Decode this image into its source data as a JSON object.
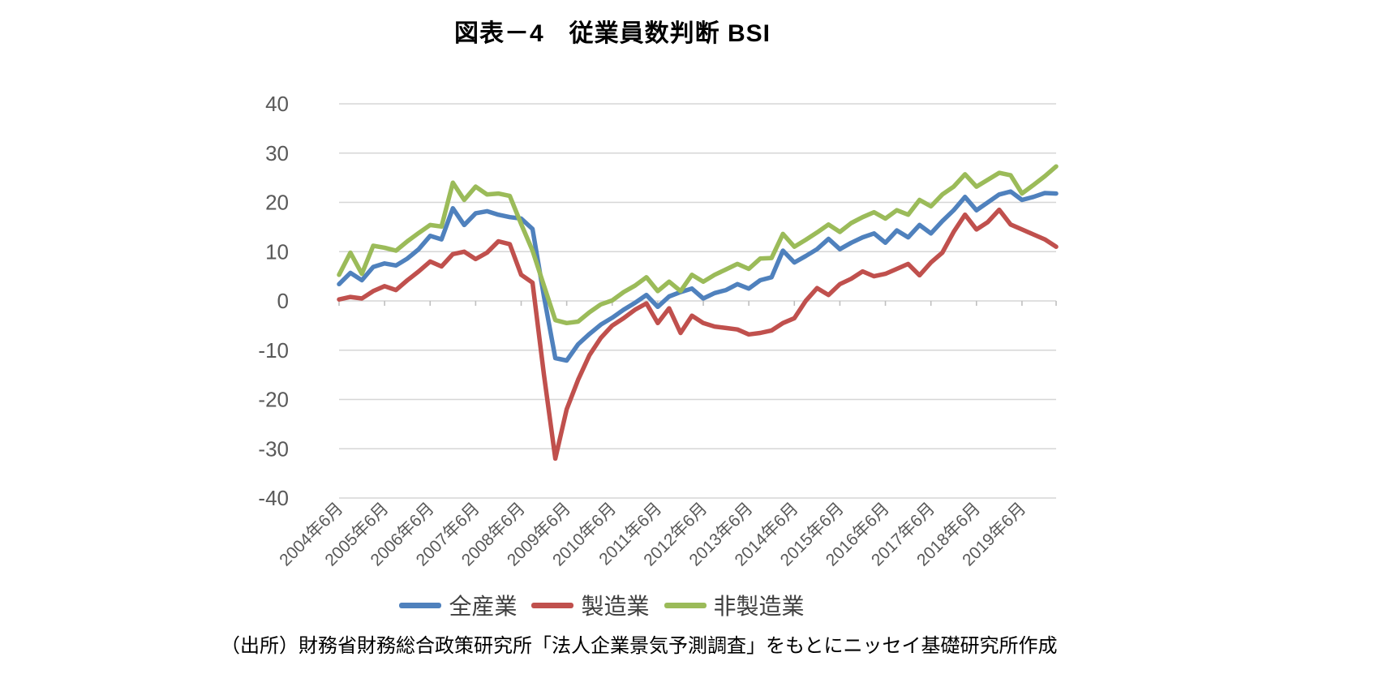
{
  "title": "図表－4　従業員数判断 BSI",
  "source": "（出所）財務省財務総合政策研究所「法人企業景気予測調査」をもとにニッセイ基礎研究所作成",
  "legend": {
    "items": [
      {
        "label": "全産業",
        "color": "#4f81bd"
      },
      {
        "label": "製造業",
        "color": "#c0504d"
      },
      {
        "label": "非製造業",
        "color": "#9bbb59"
      }
    ]
  },
  "colors": {
    "grid": "#d6d6d6",
    "tick": "#bfbfbf",
    "axis_text": "#595959",
    "all_industries": "#4f81bd",
    "manufacturing": "#c0504d",
    "non_manufacturing": "#9bbb59"
  },
  "chart_data": {
    "type": "line",
    "title": "図表－4　従業員数判断 BSI",
    "xlabel": "",
    "ylabel": "",
    "ylim": [
      -40,
      40
    ],
    "ytick_step": 10,
    "yticks": [
      40,
      30,
      20,
      10,
      0,
      -10,
      -20,
      -30,
      -40
    ],
    "grid": true,
    "legend_position": "bottom",
    "x_tick_every": 4,
    "categories": [
      "2004年6月",
      "2004年9月",
      "2004年12月",
      "2005年3月",
      "2005年6月",
      "2005年9月",
      "2005年12月",
      "2006年3月",
      "2006年6月",
      "2006年9月",
      "2006年12月",
      "2007年3月",
      "2007年6月",
      "2007年9月",
      "2007年12月",
      "2008年3月",
      "2008年6月",
      "2008年9月",
      "2008年12月",
      "2009年3月",
      "2009年6月",
      "2009年9月",
      "2009年12月",
      "2010年3月",
      "2010年6月",
      "2010年9月",
      "2010年12月",
      "2011年3月",
      "2011年6月",
      "2011年9月",
      "2011年12月",
      "2012年3月",
      "2012年6月",
      "2012年9月",
      "2012年12月",
      "2013年3月",
      "2013年6月",
      "2013年9月",
      "2013年12月",
      "2014年3月",
      "2014年6月",
      "2014年9月",
      "2014年12月",
      "2015年3月",
      "2015年6月",
      "2015年9月",
      "2015年12月",
      "2016年3月",
      "2016年6月",
      "2016年9月",
      "2016年12月",
      "2017年3月",
      "2017年6月",
      "2017年9月",
      "2017年12月",
      "2018年3月",
      "2018年6月",
      "2018年9月",
      "2018年12月",
      "2019年3月",
      "2019年6月",
      "2019年9月",
      "2019年12月",
      "2020年3月"
    ],
    "series": [
      {
        "name": "全産業",
        "color": "#4f81bd",
        "values": [
          3.4,
          5.7,
          4.2,
          6.9,
          7.6,
          7.2,
          8.6,
          10.5,
          13.2,
          12.5,
          18.8,
          15.4,
          17.8,
          18.2,
          17.5,
          17.0,
          16.7,
          14.6,
          0.9,
          -11.6,
          -12.1,
          -8.8,
          -6.7,
          -4.8,
          -3.4,
          -1.8,
          -0.4,
          1.2,
          -1.2,
          0.9,
          1.8,
          2.5,
          0.5,
          1.6,
          2.2,
          3.4,
          2.5,
          4.2,
          4.8,
          10.2,
          7.8,
          9.1,
          10.5,
          12.6,
          10.5,
          11.8,
          12.9,
          13.7,
          11.8,
          14.3,
          12.9,
          15.4,
          13.7,
          16.2,
          18.4,
          21.1,
          18.4,
          20.0,
          21.6,
          22.2,
          20.5,
          21.1,
          21.9,
          21.8
        ]
      },
      {
        "name": "製造業",
        "color": "#c0504d",
        "values": [
          0.3,
          0.8,
          0.5,
          2.0,
          3.0,
          2.2,
          4.2,
          6.0,
          8.0,
          7.0,
          9.5,
          10.0,
          8.5,
          9.8,
          12.1,
          11.5,
          5.3,
          3.7,
          -15.0,
          -32.0,
          -22.0,
          -16.0,
          -11.0,
          -7.5,
          -5.0,
          -3.5,
          -1.8,
          -0.5,
          -4.5,
          -1.5,
          -6.5,
          -3.0,
          -4.5,
          -5.2,
          -5.5,
          -5.8,
          -6.8,
          -6.5,
          -6.0,
          -4.5,
          -3.5,
          0.0,
          2.6,
          1.2,
          3.4,
          4.5,
          6.0,
          5.0,
          5.5,
          6.5,
          7.5,
          5.2,
          7.8,
          9.8,
          14.0,
          17.5,
          14.5,
          16.0,
          18.5,
          15.5,
          14.5,
          13.5,
          12.5,
          11.0
        ]
      },
      {
        "name": "非製造業",
        "color": "#9bbb59",
        "values": [
          5.3,
          9.8,
          5.5,
          11.2,
          10.8,
          10.2,
          12.1,
          13.8,
          15.4,
          15.1,
          24.0,
          20.5,
          23.2,
          21.6,
          21.8,
          21.3,
          15.6,
          10.2,
          3.1,
          -3.9,
          -4.5,
          -4.2,
          -2.3,
          -0.7,
          0.1,
          1.8,
          3.1,
          4.8,
          2.0,
          3.9,
          2.0,
          5.3,
          3.9,
          5.3,
          6.4,
          7.5,
          6.5,
          8.6,
          8.7,
          13.6,
          11.0,
          12.4,
          13.9,
          15.5,
          14.0,
          15.8,
          17.0,
          18.0,
          16.7,
          18.4,
          17.5,
          20.5,
          19.2,
          21.6,
          23.2,
          25.7,
          23.2,
          24.6,
          26.0,
          25.5,
          21.8,
          23.5,
          25.3,
          27.3
        ]
      }
    ]
  }
}
